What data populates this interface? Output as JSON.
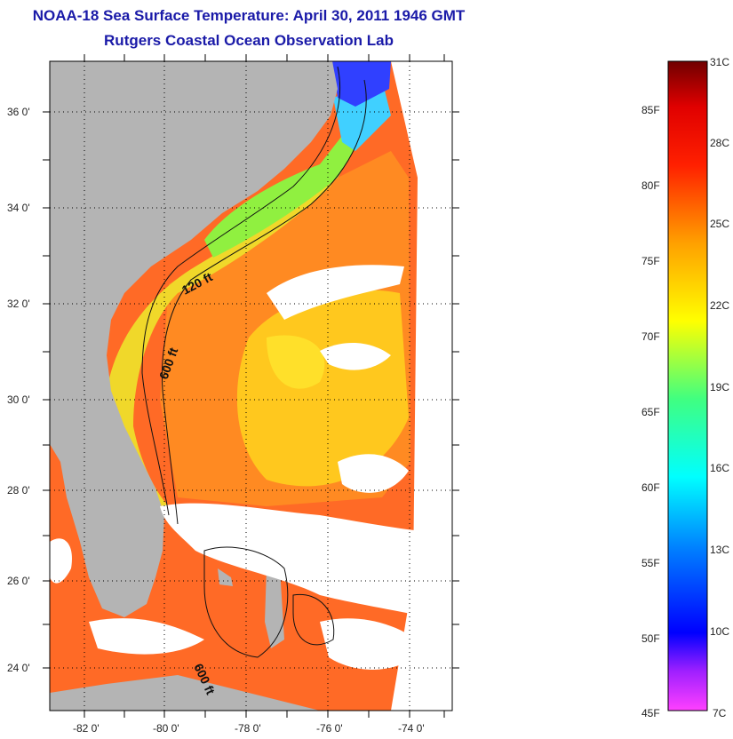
{
  "header": {
    "title": "NOAA-18 Sea Surface Temperature:  April 30, 2011 1946 GMT",
    "subtitle": "Rutgers Coastal Ocean Observation Lab"
  },
  "map": {
    "lat_labels": [
      "36 0'",
      "34 0'",
      "32 0'",
      "30 0'",
      "28 0'",
      "26 0'",
      "24 0'"
    ],
    "lon_labels": [
      "-82 0'",
      "-80 0'",
      "-78 0'",
      "-76 0'",
      "-74 0'"
    ],
    "contour_labels": [
      "120 ft",
      "600 ft",
      "600 ft"
    ],
    "colors": {
      "land": "#b4b4b4",
      "cloud": "#ffffff",
      "warm": "#ff3a1e",
      "orange": "#ff8a1e",
      "yellow": "#ffd21e",
      "green": "#7aff4a",
      "cyan": "#30e0ff",
      "blue": "#2040ff"
    }
  },
  "colorbar": {
    "fahrenheit_labels": [
      "85F",
      "80F",
      "75F",
      "70F",
      "65F",
      "60F",
      "55F",
      "50F",
      "45F"
    ],
    "celsius_labels": [
      "31C",
      "28C",
      "25C",
      "22C",
      "19C",
      "16C",
      "13C",
      "10C",
      "7C"
    ],
    "range_c": [
      7,
      31
    ]
  }
}
